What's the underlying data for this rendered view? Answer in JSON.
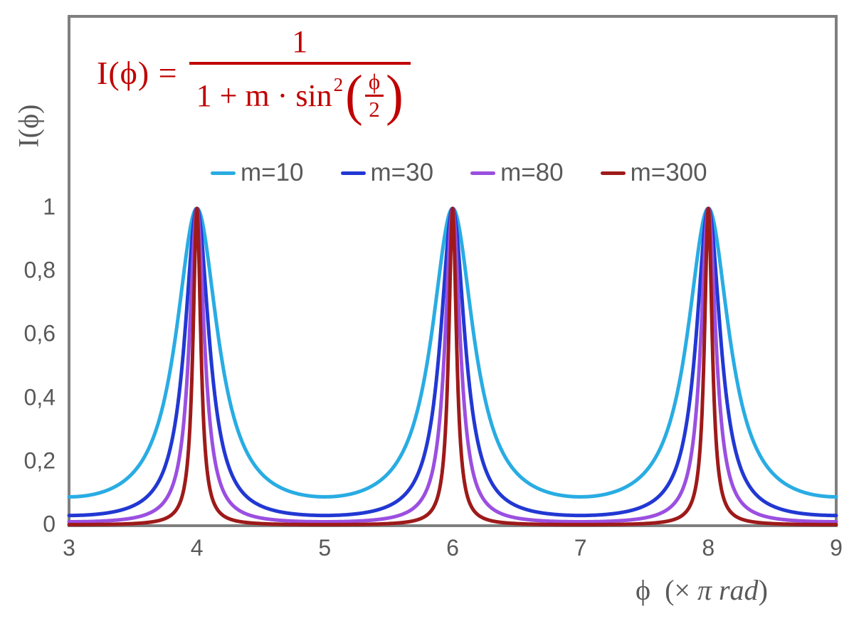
{
  "palette": {
    "formula_red": "#C00000",
    "text_gray": "#595959",
    "axis_gray": "#7F7F7F",
    "background": "#FFFFFF"
  },
  "formula": {
    "lhs": "I(ϕ) =",
    "numerator": "1",
    "denominator_prefix": "1 + m · sin",
    "denominator_sup": "2",
    "open_paren": "(",
    "inner_numerator": "ϕ",
    "inner_denominator": "2",
    "close_paren": ")"
  },
  "axes": {
    "y_label": "I(ϕ)",
    "x_label_phi": "ϕ",
    "x_label_pre": "  (× ",
    "x_label_italic": "π rad",
    "x_label_close": ")",
    "y_ticks": [
      "1",
      "0,8",
      "0,6",
      "0,4",
      "0,2",
      "0"
    ],
    "x_ticks": [
      "3",
      "4",
      "5",
      "6",
      "7",
      "8",
      "9"
    ]
  },
  "legend": {
    "items": [
      {
        "label": "m=10",
        "color": "#29ACE3"
      },
      {
        "label": "m=30",
        "color": "#2238D3"
      },
      {
        "label": "m=80",
        "color": "#9B4FE0"
      },
      {
        "label": "m=300",
        "color": "#9E1A1A"
      }
    ]
  },
  "chart_data": {
    "type": "line",
    "title": "",
    "xlabel": "ϕ (× π rad)",
    "ylabel": "I(ϕ)",
    "x_range": [
      3,
      9
    ],
    "ylim": [
      0,
      1
    ],
    "x_tick_values": [
      3,
      4,
      5,
      6,
      7,
      8,
      9
    ],
    "y_tick_values": [
      1,
      0.8,
      0.6,
      0.4,
      0.2,
      0
    ],
    "grid": false,
    "legend_position": "top-center",
    "function": "I(x) = 1 / (1 + m * sin^2(pi * x / 2)), x in units of pi rad",
    "peaks_at_x": [
      4,
      6,
      8
    ],
    "peak_value": 1,
    "minima_at_x": [
      3,
      5,
      7,
      9
    ],
    "series": [
      {
        "name": "m=10",
        "m": 10,
        "color": "#29ACE3",
        "max_value": 1,
        "min_value": 0.0909
      },
      {
        "name": "m=30",
        "m": 30,
        "color": "#2238D3",
        "max_value": 1,
        "min_value": 0.0323
      },
      {
        "name": "m=80",
        "m": 80,
        "color": "#9B4FE0",
        "max_value": 1,
        "min_value": 0.0123
      },
      {
        "name": "m=300",
        "m": 300,
        "color": "#9E1A1A",
        "max_value": 1,
        "min_value": 0.0033
      }
    ]
  }
}
